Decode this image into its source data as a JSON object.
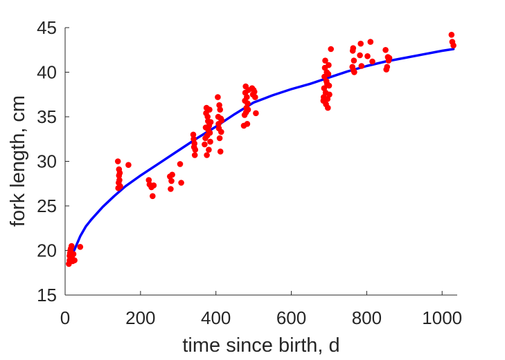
{
  "chart_data": {
    "type": "scatter",
    "xlabel": "time since birth, d",
    "ylabel": "fork length, cm",
    "xlim": [
      0,
      1040
    ],
    "ylim": [
      15,
      45
    ],
    "xticks": [
      0,
      200,
      400,
      600,
      800,
      1000
    ],
    "yticks": [
      15,
      20,
      25,
      30,
      35,
      40,
      45
    ],
    "grid": false,
    "point_color": "#ff0000",
    "line_color": "#0000ff",
    "series": [
      {
        "type": "scatter",
        "points": [
          [
            10,
            18.5
          ],
          [
            12,
            18.9
          ],
          [
            12,
            19.4
          ],
          [
            13,
            19.7
          ],
          [
            14,
            20.0
          ],
          [
            15,
            20.2
          ],
          [
            17,
            20.5
          ],
          [
            18,
            19.2
          ],
          [
            20,
            18.8
          ],
          [
            22,
            19.6
          ],
          [
            25,
            18.9
          ],
          [
            40,
            20.4
          ],
          [
            140,
            30.0
          ],
          [
            141,
            27.0
          ],
          [
            142,
            27.6
          ],
          [
            143,
            28.4
          ],
          [
            143,
            29.1
          ],
          [
            144,
            27.9
          ],
          [
            145,
            28.7
          ],
          [
            146,
            27.2
          ],
          [
            168,
            29.6
          ],
          [
            222,
            27.9
          ],
          [
            224,
            27.4
          ],
          [
            229,
            27.1
          ],
          [
            232,
            26.1
          ],
          [
            235,
            27.3
          ],
          [
            278,
            28.3
          ],
          [
            280,
            26.9
          ],
          [
            282,
            27.8
          ],
          [
            284,
            28.5
          ],
          [
            305,
            29.7
          ],
          [
            308,
            27.6
          ],
          [
            340,
            33.0
          ],
          [
            341,
            32.5
          ],
          [
            342,
            31.6
          ],
          [
            343,
            32.0
          ],
          [
            344,
            30.7
          ],
          [
            345,
            31.3
          ],
          [
            370,
            31.9
          ],
          [
            372,
            32.6
          ],
          [
            373,
            33.8
          ],
          [
            374,
            35.4
          ],
          [
            375,
            36.0
          ],
          [
            376,
            30.7
          ],
          [
            377,
            32.9
          ],
          [
            378,
            35.0
          ],
          [
            379,
            34.5
          ],
          [
            380,
            33.5
          ],
          [
            381,
            31.3
          ],
          [
            382,
            34.0
          ],
          [
            383,
            35.8
          ],
          [
            384,
            33.2
          ],
          [
            385,
            32.2
          ],
          [
            386,
            34.4
          ],
          [
            405,
            37.2
          ],
          [
            406,
            35.0
          ],
          [
            407,
            34.2
          ],
          [
            408,
            33.7
          ],
          [
            409,
            36.3
          ],
          [
            410,
            32.6
          ],
          [
            411,
            35.8
          ],
          [
            412,
            31.1
          ],
          [
            413,
            34.8
          ],
          [
            414,
            33.3
          ],
          [
            415,
            34.6
          ],
          [
            474,
            34.0
          ],
          [
            476,
            35.2
          ],
          [
            477,
            36.8
          ],
          [
            478,
            37.7
          ],
          [
            479,
            38.4
          ],
          [
            480,
            35.5
          ],
          [
            481,
            36.0
          ],
          [
            482,
            37.2
          ],
          [
            483,
            34.2
          ],
          [
            484,
            36.5
          ],
          [
            485,
            35.8
          ],
          [
            486,
            38.0
          ],
          [
            496,
            38.2
          ],
          [
            498,
            37.5
          ],
          [
            500,
            38.0
          ],
          [
            502,
            37.8
          ],
          [
            504,
            37.2
          ],
          [
            506,
            35.4
          ],
          [
            685,
            36.8
          ],
          [
            686,
            37.2
          ],
          [
            687,
            38.2
          ],
          [
            688,
            39.5
          ],
          [
            689,
            40.5
          ],
          [
            690,
            41.3
          ],
          [
            691,
            37.7
          ],
          [
            692,
            36.4
          ],
          [
            693,
            39.0
          ],
          [
            694,
            40.0
          ],
          [
            695,
            38.7
          ],
          [
            696,
            37.0
          ],
          [
            697,
            36.0
          ],
          [
            698,
            39.8
          ],
          [
            699,
            40.8
          ],
          [
            700,
            38.5
          ],
          [
            701,
            37.5
          ],
          [
            705,
            42.6
          ],
          [
            762,
            40.6
          ],
          [
            763,
            42.4
          ],
          [
            764,
            42.7
          ],
          [
            765,
            40.2
          ],
          [
            766,
            41.3
          ],
          [
            767,
            40.0
          ],
          [
            782,
            41.9
          ],
          [
            784,
            43.2
          ],
          [
            786,
            40.7
          ],
          [
            802,
            41.8
          ],
          [
            810,
            43.4
          ],
          [
            815,
            41.2
          ],
          [
            850,
            42.5
          ],
          [
            852,
            40.3
          ],
          [
            854,
            40.6
          ],
          [
            856,
            41.7
          ],
          [
            858,
            41.3
          ],
          [
            860,
            41.6
          ],
          [
            1025,
            44.2
          ],
          [
            1027,
            43.4
          ],
          [
            1030,
            43.0
          ]
        ]
      },
      {
        "type": "line",
        "x": [
          10,
          25,
          40,
          55,
          70,
          100,
          130,
          160,
          200,
          250,
          300,
          350,
          400,
          450,
          500,
          550,
          600,
          650,
          700,
          750,
          800,
          850,
          900,
          950,
          1000,
          1030
        ],
        "y": [
          19.0,
          20.1,
          21.6,
          22.7,
          23.5,
          24.9,
          26.1,
          27.2,
          28.4,
          29.8,
          31.2,
          32.6,
          33.9,
          35.3,
          36.6,
          37.4,
          38.1,
          38.7,
          39.4,
          40.1,
          40.7,
          41.2,
          41.6,
          42.0,
          42.4,
          42.6
        ]
      }
    ]
  }
}
